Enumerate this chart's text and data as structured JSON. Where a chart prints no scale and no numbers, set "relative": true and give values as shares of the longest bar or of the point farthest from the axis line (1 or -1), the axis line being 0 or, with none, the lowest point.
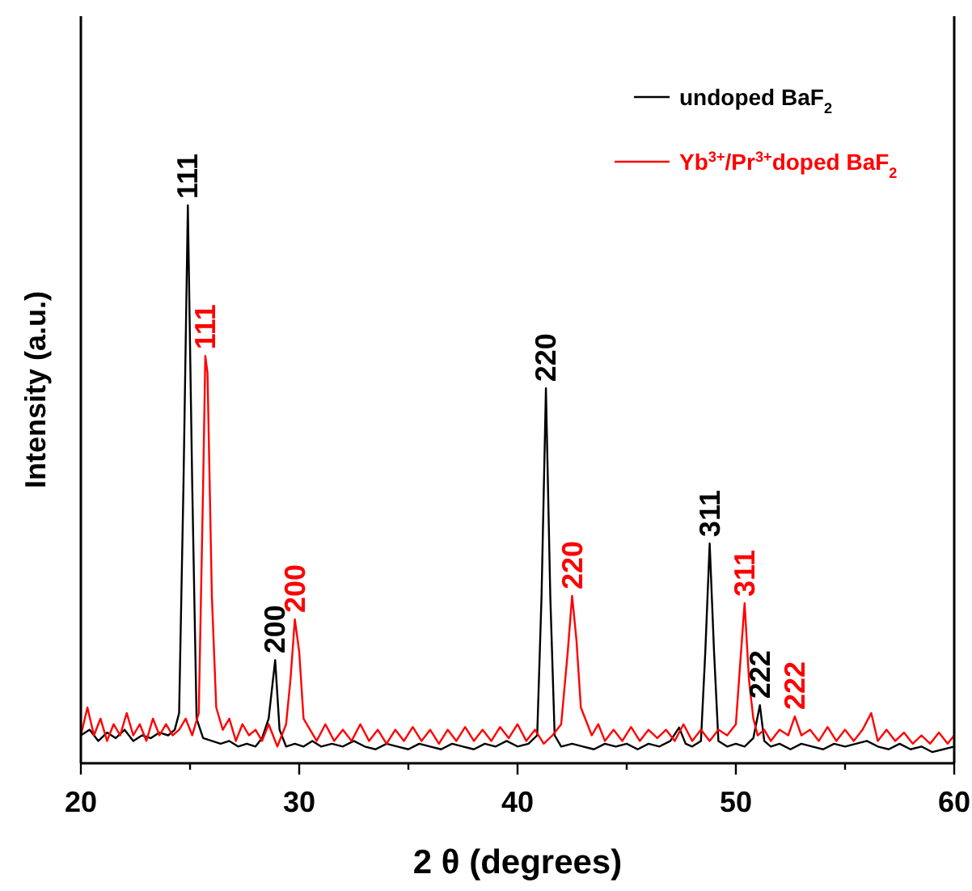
{
  "chart_data": {
    "type": "line",
    "relative": true,
    "xlabel": "2 θ (degrees)",
    "ylabel": "Intensity (a.u.)",
    "xlim": [
      20,
      60
    ],
    "xticks": [
      20,
      {
        "value": 25,
        "label": null
      },
      30,
      {
        "value": 35,
        "label": null
      },
      40,
      {
        "value": 45,
        "label": null
      },
      50,
      {
        "value": 55,
        "label": null
      },
      60
    ],
    "legend": "top right",
    "grid": false,
    "marker": "none",
    "line_style": "solid",
    "series": [
      {
        "name": "undoped BaF$_{2}$",
        "color": "#000000",
        "x": [
          20,
          20.4,
          20.8,
          21.2,
          21.6,
          22,
          22.4,
          22.8,
          23.2,
          23.6,
          24,
          24.3,
          24.5,
          24.7,
          24.9,
          25.1,
          25.3,
          25.6,
          26,
          26.4,
          26.8,
          27.2,
          27.6,
          28,
          28.3,
          28.6,
          28.9,
          29.1,
          29.4,
          29.8,
          30.2,
          30.6,
          31,
          31.5,
          32,
          32.5,
          33,
          33.5,
          34,
          34.5,
          35,
          35.5,
          36,
          36.5,
          37,
          37.5,
          38,
          38.5,
          39,
          39.5,
          40,
          40.5,
          40.9,
          41.1,
          41.3,
          41.5,
          41.7,
          42,
          42.5,
          43,
          43.5,
          44,
          44.5,
          45,
          45.5,
          46,
          46.5,
          47,
          47.4,
          47.7,
          48,
          48.4,
          48.6,
          48.8,
          49,
          49.2,
          49.6,
          50,
          50.4,
          50.8,
          51.1,
          51.3,
          51.6,
          52,
          52.5,
          53,
          53.5,
          54,
          54.5,
          55,
          55.5,
          56,
          56.5,
          57,
          57.5,
          58,
          58.5,
          59,
          59.5,
          60
        ],
        "values": [
          0.05,
          0.06,
          0.04,
          0.055,
          0.045,
          0.06,
          0.04,
          0.05,
          0.045,
          0.055,
          0.05,
          0.06,
          0.09,
          0.5,
          1,
          0.5,
          0.08,
          0.045,
          0.04,
          0.035,
          0.04,
          0.03,
          0.035,
          0.03,
          0.045,
          0.08,
          0.185,
          0.06,
          0.03,
          0.035,
          0.03,
          0.04,
          0.03,
          0.035,
          0.03,
          0.04,
          0.03,
          0.025,
          0.035,
          0.03,
          0.025,
          0.035,
          0.03,
          0.025,
          0.035,
          0.03,
          0.025,
          0.035,
          0.03,
          0.04,
          0.03,
          0.035,
          0.05,
          0.3,
          0.672,
          0.3,
          0.05,
          0.03,
          0.035,
          0.03,
          0.025,
          0.035,
          0.03,
          0.035,
          0.025,
          0.035,
          0.03,
          0.04,
          0.064,
          0.035,
          0.03,
          0.04,
          0.2,
          0.394,
          0.2,
          0.04,
          0.03,
          0.035,
          0.03,
          0.045,
          0.104,
          0.04,
          0.03,
          0.035,
          0.025,
          0.035,
          0.03,
          0.025,
          0.035,
          0.03,
          0.035,
          0.04,
          0.03,
          0.025,
          0.035,
          0.025,
          0.03,
          0.02,
          0.025,
          0.03
        ]
      },
      {
        "name": "Yb$^{3+}$/Pr$^{3+}$doped BaF$_{2}$",
        "color": "#ff0000",
        "x": [
          20,
          20.3,
          20.6,
          20.9,
          21.2,
          21.5,
          21.8,
          22.1,
          22.4,
          22.7,
          23,
          23.3,
          23.6,
          23.9,
          24.2,
          24.5,
          24.8,
          25.1,
          25.4,
          25.6,
          25.7,
          25.8,
          26,
          26.2,
          26.5,
          26.8,
          27.1,
          27.4,
          27.7,
          28,
          28.3,
          28.6,
          29,
          29.4,
          29.6,
          29.8,
          30,
          30.2,
          30.5,
          30.8,
          31.2,
          31.6,
          32,
          32.4,
          32.8,
          33.2,
          33.6,
          34,
          34.4,
          34.8,
          35.2,
          35.6,
          36,
          36.4,
          36.8,
          37.2,
          37.6,
          38,
          38.4,
          38.8,
          39.2,
          39.6,
          40,
          40.4,
          40.8,
          41.2,
          41.6,
          42,
          42.3,
          42.5,
          42.7,
          42.9,
          43.1,
          43.4,
          43.7,
          44,
          44.4,
          44.8,
          45.2,
          45.6,
          46,
          46.4,
          46.8,
          47.2,
          47.6,
          48,
          48.4,
          48.8,
          49.2,
          49.6,
          50,
          50.2,
          50.4,
          50.6,
          50.8,
          51,
          51.3,
          51.6,
          52,
          52.4,
          52.7,
          53,
          53.4,
          53.8,
          54.2,
          54.6,
          55,
          55.4,
          55.8,
          56.2,
          56.5,
          56.9,
          57.3,
          57.7,
          58.1,
          58.5,
          58.9,
          59.3,
          59.7,
          60
        ],
        "values": [
          0.05,
          0.1,
          0.05,
          0.08,
          0.04,
          0.07,
          0.05,
          0.09,
          0.05,
          0.07,
          0.04,
          0.08,
          0.05,
          0.07,
          0.05,
          0.06,
          0.08,
          0.05,
          0.09,
          0.5,
          0.73,
          0.7,
          0.3,
          0.1,
          0.06,
          0.08,
          0.04,
          0.07,
          0.05,
          0.06,
          0.04,
          0.07,
          0.03,
          0.07,
          0.15,
          0.258,
          0.2,
          0.08,
          0.06,
          0.04,
          0.07,
          0.04,
          0.06,
          0.04,
          0.07,
          0.04,
          0.06,
          0.035,
          0.06,
          0.04,
          0.065,
          0.04,
          0.06,
          0.035,
          0.06,
          0.04,
          0.065,
          0.04,
          0.06,
          0.04,
          0.065,
          0.045,
          0.07,
          0.04,
          0.06,
          0.035,
          0.05,
          0.07,
          0.2,
          0.3,
          0.22,
          0.1,
          0.08,
          0.05,
          0.07,
          0.04,
          0.06,
          0.04,
          0.065,
          0.04,
          0.06,
          0.045,
          0.06,
          0.04,
          0.07,
          0.04,
          0.06,
          0.04,
          0.06,
          0.05,
          0.07,
          0.18,
          0.287,
          0.15,
          0.08,
          0.05,
          0.06,
          0.04,
          0.06,
          0.05,
          0.084,
          0.05,
          0.06,
          0.04,
          0.065,
          0.04,
          0.06,
          0.04,
          0.06,
          0.09,
          0.04,
          0.06,
          0.04,
          0.055,
          0.035,
          0.05,
          0.035,
          0.055,
          0.035,
          0.05
        ]
      }
    ],
    "annotations": [
      {
        "text": "111",
        "x": 24.9,
        "y": 1
      },
      {
        "text": "200",
        "x": 28.9,
        "y": 0.185
      },
      {
        "text": "220",
        "x": 41.3,
        "y": 0.672
      },
      {
        "text": "311",
        "x": 48.8,
        "y": 0.394
      },
      {
        "text": "222",
        "x": 51.1,
        "y": 0.104
      },
      {
        "text": "111",
        "x": 25.7,
        "y": 0.73
      },
      {
        "text": "200",
        "x": 29.8,
        "y": 0.258
      },
      {
        "text": "220",
        "x": 42.5,
        "y": 0.3
      },
      {
        "text": "311",
        "x": 50.4,
        "y": 0.287
      },
      {
        "text": "222",
        "x": 52.7,
        "y": 0.084
      }
    ]
  }
}
